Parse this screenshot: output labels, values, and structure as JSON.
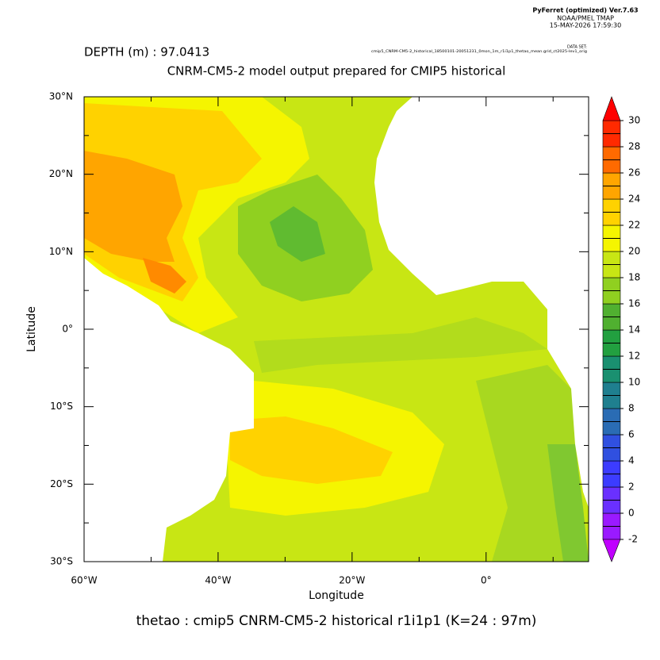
{
  "header": {
    "program": "PyFerret (optimized) Ver.7.63",
    "org": "NOAA/PMEL TMAP",
    "timestamp": "15-MAY-2026 17:59:30",
    "dataset_label": "DATA SET:",
    "dataset": "cmip5_CNRM-CM5-2_historical_18500101-20051231_0mon_1m_r1i1p1_thetao_mean.grid_ct2025-lev1_orig"
  },
  "depth": "DEPTH (m) : 97.0413",
  "title": "CNRM-CM5-2 model output prepared for CMIP5 historical",
  "caption": "thetao : cmip5 CNRM-CM5-2 historical r1i1p1   (K=24 : 97m)",
  "x_axis": {
    "label": "Longitude",
    "lim": [
      -60,
      15.3
    ],
    "ticks": [
      {
        "value": -60,
        "label": "60°W"
      },
      {
        "value": -40,
        "label": "40°W"
      },
      {
        "value": -20,
        "label": "20°W"
      },
      {
        "value": 0,
        "label": "0°"
      }
    ]
  },
  "y_axis": {
    "label": "Latitude",
    "lim": [
      -30,
      30
    ],
    "ticks": [
      {
        "value": 30,
        "label": "30°N"
      },
      {
        "value": 20,
        "label": "20°N"
      },
      {
        "value": 10,
        "label": "10°N"
      },
      {
        "value": 0,
        "label": "0°"
      },
      {
        "value": -10,
        "label": "10°S"
      },
      {
        "value": -20,
        "label": "20°S"
      },
      {
        "value": -30,
        "label": "30°S"
      }
    ]
  },
  "colorbar": {
    "levels": [
      -2,
      0,
      2,
      4,
      6,
      8,
      10,
      12,
      14,
      16,
      18,
      20,
      22,
      24,
      26,
      28,
      30
    ],
    "colors": [
      "#9a1aff",
      "#6a30ff",
      "#3c3cff",
      "#3050e0",
      "#2a6cb4",
      "#1f7f8f",
      "#1a9070",
      "#22a040",
      "#50b030",
      "#90d020",
      "#c8e614",
      "#f5f500",
      "#ffd200",
      "#ffa500",
      "#ff6a00",
      "#ff2a00"
    ],
    "under_color": "#c000ff",
    "over_color": "#ff0000"
  }
}
